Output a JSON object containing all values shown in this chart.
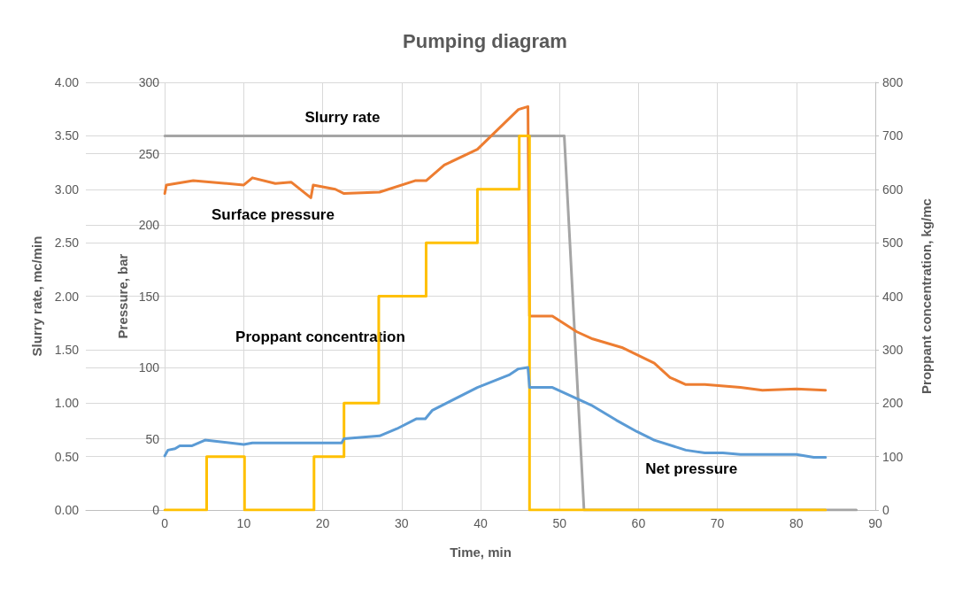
{
  "chart_data": {
    "type": "line",
    "title": "Pumping diagram",
    "xlabel": "Time, min",
    "ylabel": "Slurry rate, mc/min",
    "y2label": "Proppant concentration, kg/mc",
    "y3label": "Pressure, bar",
    "xlim": [
      -10,
      90
    ],
    "xticks": [
      0,
      10,
      20,
      30,
      40,
      50,
      60,
      70,
      80,
      90
    ],
    "ylim": [
      0,
      4
    ],
    "yticks": [
      {
        "value": 0,
        "label": "0.00"
      },
      {
        "value": 0.5,
        "label": "0.50"
      },
      {
        "value": 1,
        "label": "1.00"
      },
      {
        "value": 1.5,
        "label": "1.50"
      },
      {
        "value": 2,
        "label": "2.00"
      },
      {
        "value": 2.5,
        "label": "2.50"
      },
      {
        "value": 3,
        "label": "3.00"
      },
      {
        "value": 3.5,
        "label": "3.50"
      },
      {
        "value": 4,
        "label": "4.00"
      }
    ],
    "y2lim": [
      0,
      800
    ],
    "y2ticks": [
      0,
      100,
      200,
      300,
      400,
      500,
      600,
      700,
      800
    ],
    "y3lim": [
      0,
      300
    ],
    "y3ticks": [
      0,
      50,
      100,
      150,
      200,
      250,
      300
    ],
    "grid": true,
    "legend": false,
    "marker": "none",
    "line_style": "solid",
    "series": [
      {
        "name": "Slurry rate",
        "color": "#a5a5a5",
        "x": [
          0,
          50.6,
          53.1,
          87.6
        ],
        "values": [
          3.5,
          3.5,
          0,
          0
        ]
      },
      {
        "name": "Surface pressure",
        "color": "#ed7d31",
        "axis": "y3",
        "x": [
          0,
          0.2,
          3.6,
          10,
          11.1,
          14,
          16,
          18.5,
          18.8,
          21.6,
          22.7,
          27.2,
          31.7,
          33.1,
          35.4,
          39.6,
          44.8,
          46,
          46.2,
          49.1,
          52.2,
          54.2,
          57.9,
          62,
          64,
          66,
          68.4,
          72.9,
          75.7,
          80,
          83.7
        ],
        "values": [
          222,
          228,
          231,
          228,
          233,
          229,
          230,
          219,
          228,
          225,
          222,
          223,
          231,
          231,
          242,
          253,
          281,
          283,
          136,
          136,
          125,
          120,
          114,
          103,
          93,
          88,
          88,
          86,
          84,
          85,
          84
        ]
      },
      {
        "name": "Proppant concentration",
        "color": "#ffc000",
        "type": "step",
        "axis": "y2",
        "x": [
          0,
          5.3,
          10.1,
          18.9,
          22.7,
          27.1,
          33.1,
          39.6,
          44.9,
          46.2,
          83.7
        ],
        "values": [
          0,
          100,
          0,
          100,
          200,
          400,
          500,
          600,
          700,
          0,
          0
        ]
      },
      {
        "name": "Net pressure",
        "color": "#5b9bd5",
        "axis": "y3",
        "x": [
          0,
          0.4,
          1.3,
          1.9,
          3.4,
          5.1,
          10,
          11.1,
          22.4,
          22.7,
          27.2,
          29.4,
          31.9,
          33,
          33.9,
          39.6,
          43.7,
          44.8,
          46,
          46.2,
          49.1,
          54.2,
          57.2,
          59.8,
          62,
          66,
          68.4,
          70.7,
          72.9,
          80,
          82.2,
          83.7
        ],
        "values": [
          38,
          42,
          43,
          45,
          45,
          49,
          46,
          47,
          47,
          50,
          52,
          57,
          64,
          64,
          70,
          86,
          95,
          99,
          100,
          86,
          86,
          73,
          63,
          55,
          49,
          42,
          40,
          40,
          39,
          39,
          37,
          37
        ]
      }
    ]
  }
}
